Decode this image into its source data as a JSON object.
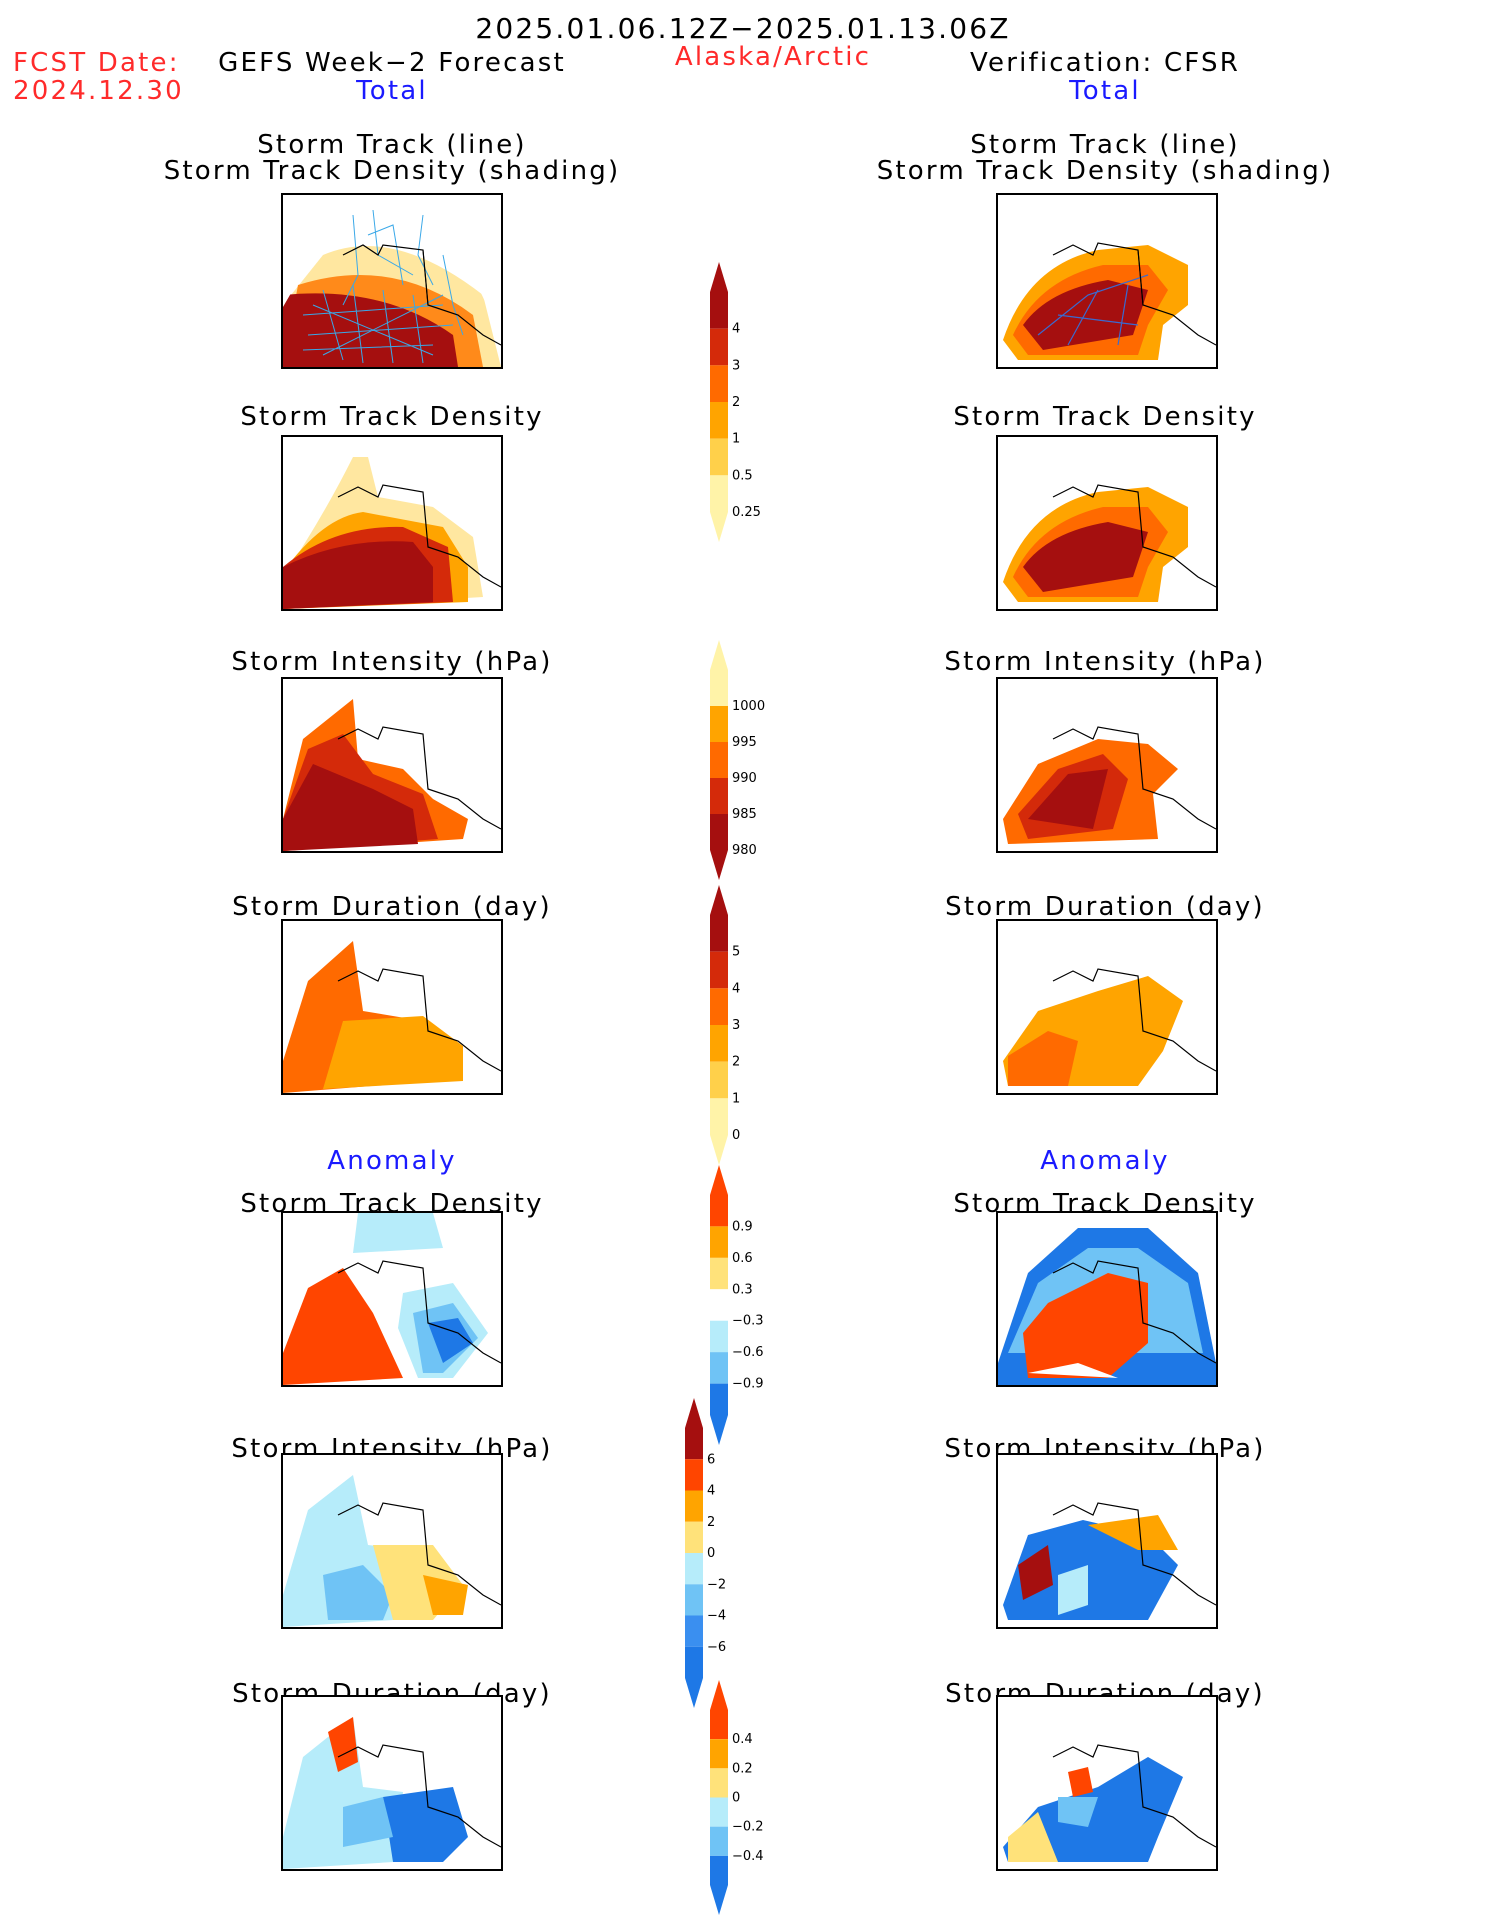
{
  "header": {
    "title": "2025.01.06.12Z−2025.01.13.06Z",
    "region": "Alaska/Arctic",
    "fcst_label": "FCST Date:",
    "fcst_date": "2024.12.30",
    "left_title": "GEFS Week−2 Forecast",
    "right_title": "Verification: CFSR",
    "left_sub": "Total",
    "right_sub": "Total",
    "anomaly_left": "Anomaly",
    "anomaly_right": "Anomaly"
  },
  "panels": {
    "row1": "Storm Track (line)",
    "row1b": "Storm Track Density (shading)",
    "row2": "Storm Track Density",
    "row3": "Storm Intensity (hPa)",
    "row4": "Storm Duration (day)",
    "row5": "Storm Track Density",
    "row6": "Storm Intensity (hPa)",
    "row7": "Storm Duration (day)"
  },
  "colorbars": {
    "density": {
      "labels": [
        "4",
        "3",
        "2",
        "1",
        "0.5",
        "0.25"
      ],
      "colors": [
        "#a50f0f",
        "#d42a0a",
        "#ff6a00",
        "#ffa400",
        "#ffd04a",
        "#fff3a8"
      ]
    },
    "intensity": {
      "labels": [
        "1000",
        "995",
        "990",
        "985",
        "980"
      ],
      "colors": [
        "#fff3a8",
        "#ffa400",
        "#ff6a00",
        "#d42a0a",
        "#a50f0f"
      ]
    },
    "duration": {
      "labels": [
        "5",
        "4",
        "3",
        "2",
        "1",
        "0"
      ],
      "colors": [
        "#a50f0f",
        "#d42a0a",
        "#ff6a00",
        "#ffa400",
        "#ffd04a",
        "#fff3a8"
      ]
    },
    "anom_density": {
      "labels": [
        "0.9",
        "0.6",
        "0.3",
        "−0.3",
        "−0.6",
        "−0.9"
      ],
      "colors": [
        "#ff4500",
        "#ffa400",
        "#ffe27a",
        "#ffffff",
        "#b6ecfa",
        "#6fc3f5",
        "#1e78e6"
      ]
    },
    "anom_intensity": {
      "labels": [
        "6",
        "4",
        "2",
        "0",
        "−2",
        "−4",
        "−6"
      ],
      "colors": [
        "#a50f0f",
        "#ff4500",
        "#ffa400",
        "#ffe27a",
        "#b6ecfa",
        "#6fc3f5",
        "#3a8ff0",
        "#1e78e6"
      ]
    },
    "anom_duration": {
      "labels": [
        "0.4",
        "0.2",
        "0",
        "−0.2",
        "−0.4"
      ],
      "colors": [
        "#ff4500",
        "#ffa400",
        "#ffe27a",
        "#b6ecfa",
        "#6fc3f5",
        "#1e78e6"
      ]
    }
  }
}
